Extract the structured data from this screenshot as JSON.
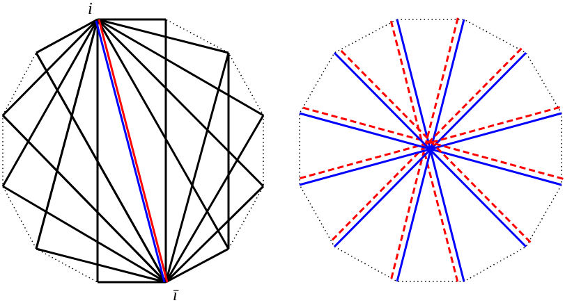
{
  "labels": {
    "top": "i",
    "bottom": "ī"
  }
}
